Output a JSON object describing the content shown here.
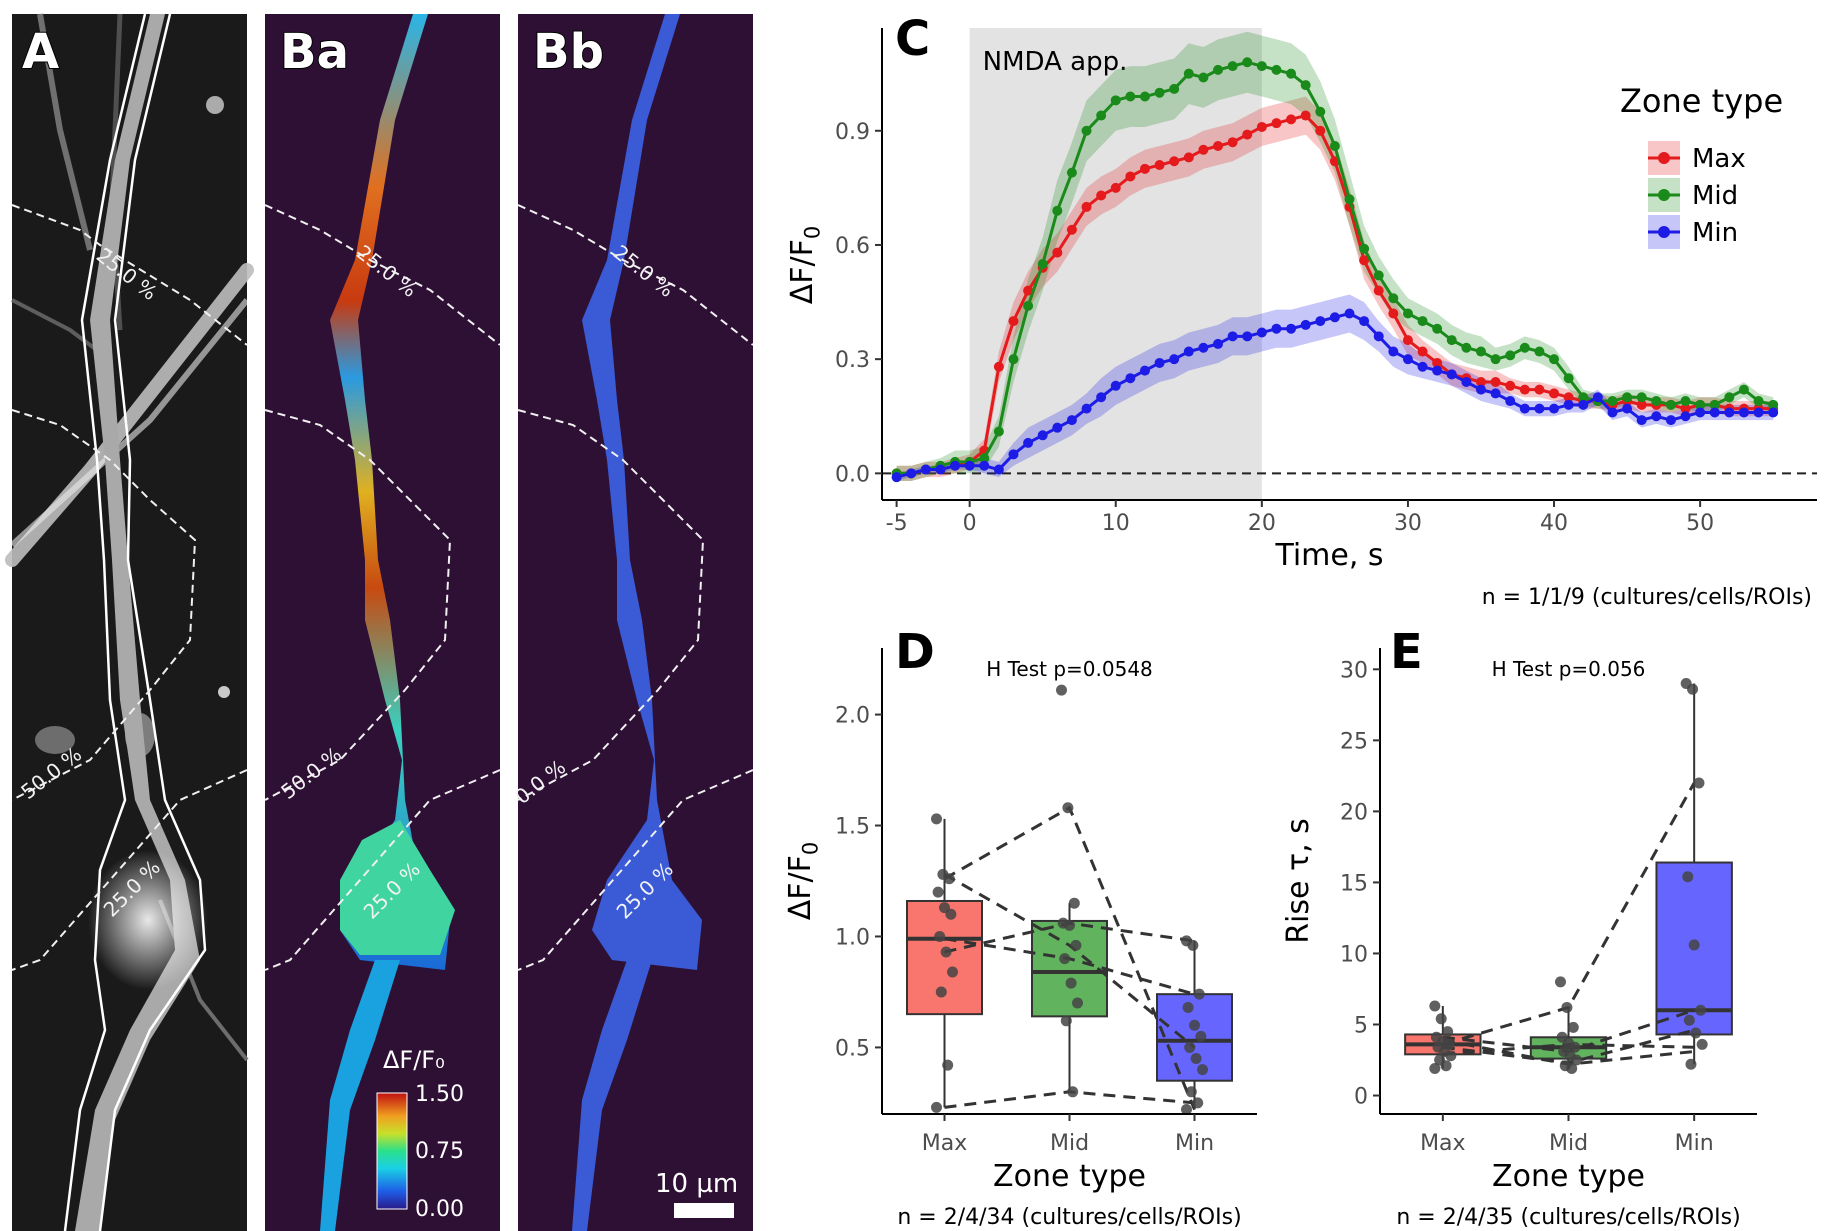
{
  "image_panels": {
    "a": {
      "letter": "A"
    },
    "ba": {
      "letter": "Ba",
      "colorbar": {
        "title": "ΔF/F₀",
        "ticks": [
          "1.50",
          "0.75",
          "0.00"
        ],
        "min": 0,
        "max": 1.5
      }
    },
    "bb": {
      "letter": "Bb",
      "scalebar": {
        "label": "10 µm"
      }
    },
    "contour_labels": {
      "c25": "25.0 %",
      "c50": "50.0 %",
      "c50b": "0.0 %"
    },
    "colors": {
      "background": "#2e1035"
    }
  },
  "chart_data": [
    {
      "panel": "C",
      "type": "line",
      "ylabel": "ΔF/F₀",
      "xlabel": "Time, s",
      "xlim": [
        -6,
        58
      ],
      "ylim": [
        -0.07,
        1.17
      ],
      "xticks": [
        -5,
        0,
        10,
        20,
        30,
        40,
        50
      ],
      "yticks": [
        0.0,
        0.3,
        0.6,
        0.9
      ],
      "ytick_labels": [
        "0.0",
        "0.3",
        "0.6",
        "0.9"
      ],
      "shaded_region": {
        "x": [
          0,
          20
        ],
        "label": "NMDA app."
      },
      "reference_line_y": 0,
      "legend": {
        "title": "Zone type",
        "position": "top-right"
      },
      "note": "n = 1/1/9 (cultures/cells/ROIs)",
      "x": [
        -5,
        -4,
        -3,
        -2,
        -1,
        0,
        1,
        2,
        3,
        4,
        5,
        6,
        7,
        8,
        9,
        10,
        11,
        12,
        13,
        14,
        15,
        16,
        17,
        18,
        19,
        20,
        21,
        22,
        23,
        24,
        25,
        26,
        27,
        28,
        29,
        30,
        31,
        32,
        33,
        34,
        35,
        36,
        37,
        38,
        39,
        40,
        41,
        42,
        43,
        44,
        45,
        46,
        47,
        48,
        49,
        50,
        51,
        52,
        53,
        54,
        55
      ],
      "series": [
        {
          "name": "Max",
          "color": "#e41a1c",
          "values": [
            0.0,
            0.0,
            0.01,
            0.01,
            0.02,
            0.03,
            0.06,
            0.28,
            0.4,
            0.48,
            0.54,
            0.58,
            0.64,
            0.7,
            0.73,
            0.75,
            0.78,
            0.8,
            0.81,
            0.82,
            0.83,
            0.85,
            0.86,
            0.87,
            0.89,
            0.91,
            0.92,
            0.93,
            0.94,
            0.9,
            0.82,
            0.7,
            0.56,
            0.48,
            0.42,
            0.35,
            0.32,
            0.29,
            0.26,
            0.25,
            0.24,
            0.24,
            0.23,
            0.22,
            0.22,
            0.21,
            0.2,
            0.19,
            0.19,
            0.18,
            0.19,
            0.18,
            0.18,
            0.18,
            0.17,
            0.18,
            0.18,
            0.17,
            0.17,
            0.17,
            0.17
          ],
          "band": [
            0.02,
            0.02,
            0.02,
            0.02,
            0.02,
            0.02,
            0.03,
            0.04,
            0.05,
            0.05,
            0.05,
            0.05,
            0.05,
            0.05,
            0.05,
            0.05,
            0.05,
            0.05,
            0.05,
            0.05,
            0.05,
            0.05,
            0.05,
            0.05,
            0.05,
            0.05,
            0.05,
            0.05,
            0.05,
            0.05,
            0.05,
            0.05,
            0.05,
            0.04,
            0.04,
            0.04,
            0.03,
            0.03,
            0.03,
            0.03,
            0.03,
            0.03,
            0.02,
            0.02,
            0.02,
            0.02,
            0.02,
            0.02,
            0.02,
            0.02,
            0.02,
            0.02,
            0.02,
            0.02,
            0.02,
            0.02,
            0.02,
            0.02,
            0.02,
            0.02,
            0.02
          ]
        },
        {
          "name": "Mid",
          "color": "#1a8a1a",
          "values": [
            0.0,
            0.0,
            0.01,
            0.02,
            0.03,
            0.03,
            0.04,
            0.11,
            0.3,
            0.44,
            0.55,
            0.69,
            0.79,
            0.9,
            0.94,
            0.98,
            0.99,
            0.99,
            1.0,
            1.01,
            1.05,
            1.04,
            1.06,
            1.07,
            1.08,
            1.07,
            1.06,
            1.05,
            1.02,
            0.95,
            0.86,
            0.72,
            0.59,
            0.52,
            0.46,
            0.42,
            0.4,
            0.38,
            0.35,
            0.33,
            0.32,
            0.3,
            0.31,
            0.33,
            0.32,
            0.3,
            0.25,
            0.2,
            0.19,
            0.19,
            0.2,
            0.2,
            0.19,
            0.18,
            0.19,
            0.18,
            0.18,
            0.2,
            0.22,
            0.19,
            0.18
          ],
          "band": [
            0.02,
            0.02,
            0.02,
            0.02,
            0.03,
            0.03,
            0.03,
            0.04,
            0.06,
            0.07,
            0.07,
            0.08,
            0.08,
            0.08,
            0.08,
            0.08,
            0.08,
            0.08,
            0.08,
            0.08,
            0.08,
            0.08,
            0.08,
            0.08,
            0.08,
            0.08,
            0.08,
            0.08,
            0.08,
            0.08,
            0.07,
            0.07,
            0.06,
            0.05,
            0.05,
            0.04,
            0.04,
            0.04,
            0.04,
            0.04,
            0.04,
            0.03,
            0.03,
            0.03,
            0.03,
            0.03,
            0.03,
            0.02,
            0.02,
            0.02,
            0.02,
            0.02,
            0.02,
            0.02,
            0.02,
            0.02,
            0.02,
            0.02,
            0.02,
            0.02,
            0.02
          ]
        },
        {
          "name": "Min",
          "color": "#1c1ce6",
          "values": [
            -0.01,
            0.0,
            0.01,
            0.01,
            0.02,
            0.02,
            0.02,
            0.01,
            0.05,
            0.08,
            0.1,
            0.12,
            0.14,
            0.17,
            0.2,
            0.23,
            0.25,
            0.27,
            0.29,
            0.3,
            0.32,
            0.33,
            0.34,
            0.36,
            0.36,
            0.37,
            0.38,
            0.38,
            0.39,
            0.4,
            0.41,
            0.42,
            0.4,
            0.36,
            0.32,
            0.3,
            0.28,
            0.27,
            0.26,
            0.24,
            0.22,
            0.21,
            0.19,
            0.17,
            0.17,
            0.17,
            0.18,
            0.18,
            0.2,
            0.16,
            0.17,
            0.14,
            0.15,
            0.14,
            0.15,
            0.16,
            0.16,
            0.16,
            0.16,
            0.16,
            0.16
          ],
          "band": [
            0.01,
            0.01,
            0.01,
            0.01,
            0.01,
            0.01,
            0.02,
            0.02,
            0.03,
            0.04,
            0.04,
            0.04,
            0.04,
            0.04,
            0.05,
            0.05,
            0.05,
            0.05,
            0.05,
            0.05,
            0.05,
            0.05,
            0.05,
            0.05,
            0.05,
            0.05,
            0.05,
            0.05,
            0.05,
            0.05,
            0.05,
            0.05,
            0.05,
            0.04,
            0.04,
            0.04,
            0.03,
            0.03,
            0.03,
            0.03,
            0.03,
            0.03,
            0.02,
            0.02,
            0.02,
            0.02,
            0.02,
            0.02,
            0.02,
            0.02,
            0.02,
            0.02,
            0.02,
            0.02,
            0.02,
            0.02,
            0.02,
            0.02,
            0.02,
            0.02,
            0.02
          ]
        }
      ]
    },
    {
      "panel": "D",
      "type": "box",
      "ylabel": "ΔF/F₀",
      "xlabel": "Zone type",
      "ylim": [
        0.2,
        2.3
      ],
      "yticks": [
        0.5,
        1.0,
        1.5,
        2.0
      ],
      "ytick_labels": [
        "0.5",
        "1.0",
        "1.5",
        "2.0"
      ],
      "annotation": "H Test p=0.0548",
      "note": "n = 2/4/34 (cultures/cells/ROIs)",
      "categories": [
        "Max",
        "Mid",
        "Min"
      ],
      "colors": [
        "#f8766d",
        "#61b35e",
        "#6666ff"
      ],
      "boxes": [
        {
          "q1": 0.65,
          "median": 0.99,
          "q3": 1.16,
          "whisker_low": 0.23,
          "whisker_high": 1.53,
          "points": [
            1.53,
            1.28,
            1.26,
            1.2,
            1.13,
            1.1,
            1.0,
            0.93,
            0.84,
            0.75,
            0.42,
            0.23
          ]
        },
        {
          "q1": 0.64,
          "median": 0.84,
          "q3": 1.07,
          "whisker_low": 0.3,
          "whisker_high": 1.15,
          "points": [
            2.11,
            1.58,
            1.15,
            1.06,
            1.05,
            0.96,
            0.9,
            0.79,
            0.7,
            0.62,
            0.3
          ]
        },
        {
          "q1": 0.35,
          "median": 0.53,
          "q3": 0.74,
          "whisker_low": 0.22,
          "whisker_high": 0.98,
          "points": [
            0.98,
            0.96,
            0.74,
            0.68,
            0.6,
            0.55,
            0.5,
            0.45,
            0.4,
            0.3,
            0.25,
            0.22
          ]
        }
      ],
      "paired_lines": [
        [
          1.26,
          1.58,
          0.22
        ],
        [
          0.23,
          0.3,
          0.25
        ],
        [
          0.99,
          0.9,
          0.74
        ],
        [
          1.28,
          0.96,
          0.5
        ],
        [
          0.93,
          1.06,
          0.98
        ]
      ]
    },
    {
      "panel": "E",
      "type": "box",
      "ylabel": "Rise τ, s",
      "xlabel": "Zone type",
      "ylim": [
        -1.3,
        31.5
      ],
      "yticks": [
        0,
        5,
        10,
        15,
        20,
        25,
        30
      ],
      "ytick_labels": [
        "0",
        "5",
        "10",
        "15",
        "20",
        "25",
        "30"
      ],
      "annotation": "H Test p=0.056",
      "note": "n = 2/4/35 (cultures/cells/ROIs)",
      "categories": [
        "Max",
        "Mid",
        "Min"
      ],
      "colors": [
        "#f8766d",
        "#61b35e",
        "#6666ff"
      ],
      "boxes": [
        {
          "q1": 2.9,
          "median": 3.6,
          "q3": 4.3,
          "whisker_low": 1.9,
          "whisker_high": 6.3,
          "points": [
            6.3,
            5.4,
            4.5,
            4.1,
            3.8,
            3.6,
            3.4,
            3.1,
            2.8,
            2.5,
            2.1,
            1.9
          ]
        },
        {
          "q1": 2.6,
          "median": 3.4,
          "q3": 4.1,
          "whisker_low": 1.9,
          "whisker_high": 6.2,
          "points": [
            8.0,
            6.2,
            4.8,
            4.1,
            3.7,
            3.4,
            3.1,
            2.8,
            2.5,
            2.1,
            1.9
          ]
        },
        {
          "q1": 4.3,
          "median": 6.0,
          "q3": 16.4,
          "whisker_low": 2.2,
          "whisker_high": 29.0,
          "points": [
            29.0,
            28.6,
            22.0,
            15.4,
            10.6,
            6.0,
            5.3,
            4.4,
            3.6,
            2.2
          ]
        }
      ],
      "paired_lines": [
        [
          3.6,
          6.2,
          22.0
        ],
        [
          3.4,
          2.3,
          4.6
        ],
        [
          4.1,
          3.1,
          6.0
        ],
        [
          2.9,
          3.6,
          3.4
        ],
        [
          3.9,
          2.2,
          3.1
        ]
      ]
    }
  ]
}
